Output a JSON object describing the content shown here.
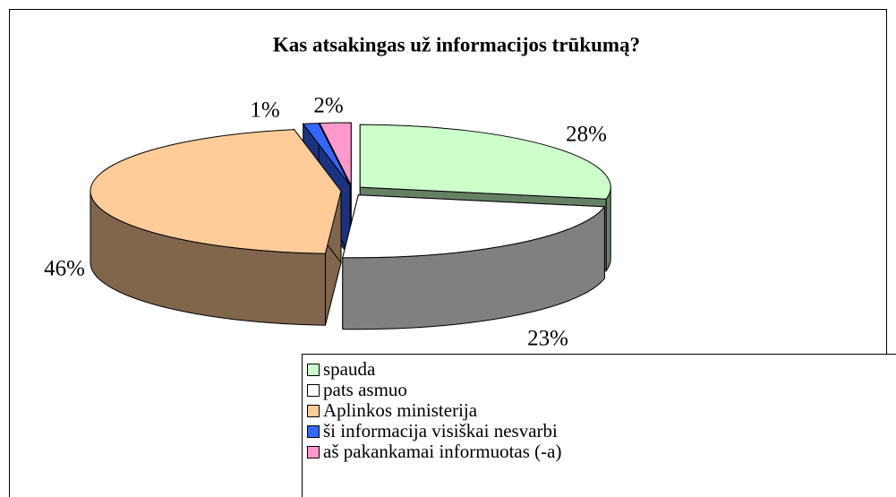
{
  "chart_data": {
    "type": "pie3d",
    "title": "Kas atsakingas už informacijos trūkumą?",
    "categories": [
      "spauda",
      "pats asmuo",
      "Aplinkos ministerija",
      "ši informacija visiškai nesvarbi",
      "aš pakankamai informuotas (-a)"
    ],
    "values": [
      28,
      23,
      46,
      1,
      2
    ],
    "value_labels": [
      "28%",
      "23%",
      "46%",
      "1%",
      "2%"
    ],
    "colors": [
      "#ccffcc",
      "#ffffff",
      "#ffcc99",
      "#3366ff",
      "#ff99cc"
    ]
  }
}
